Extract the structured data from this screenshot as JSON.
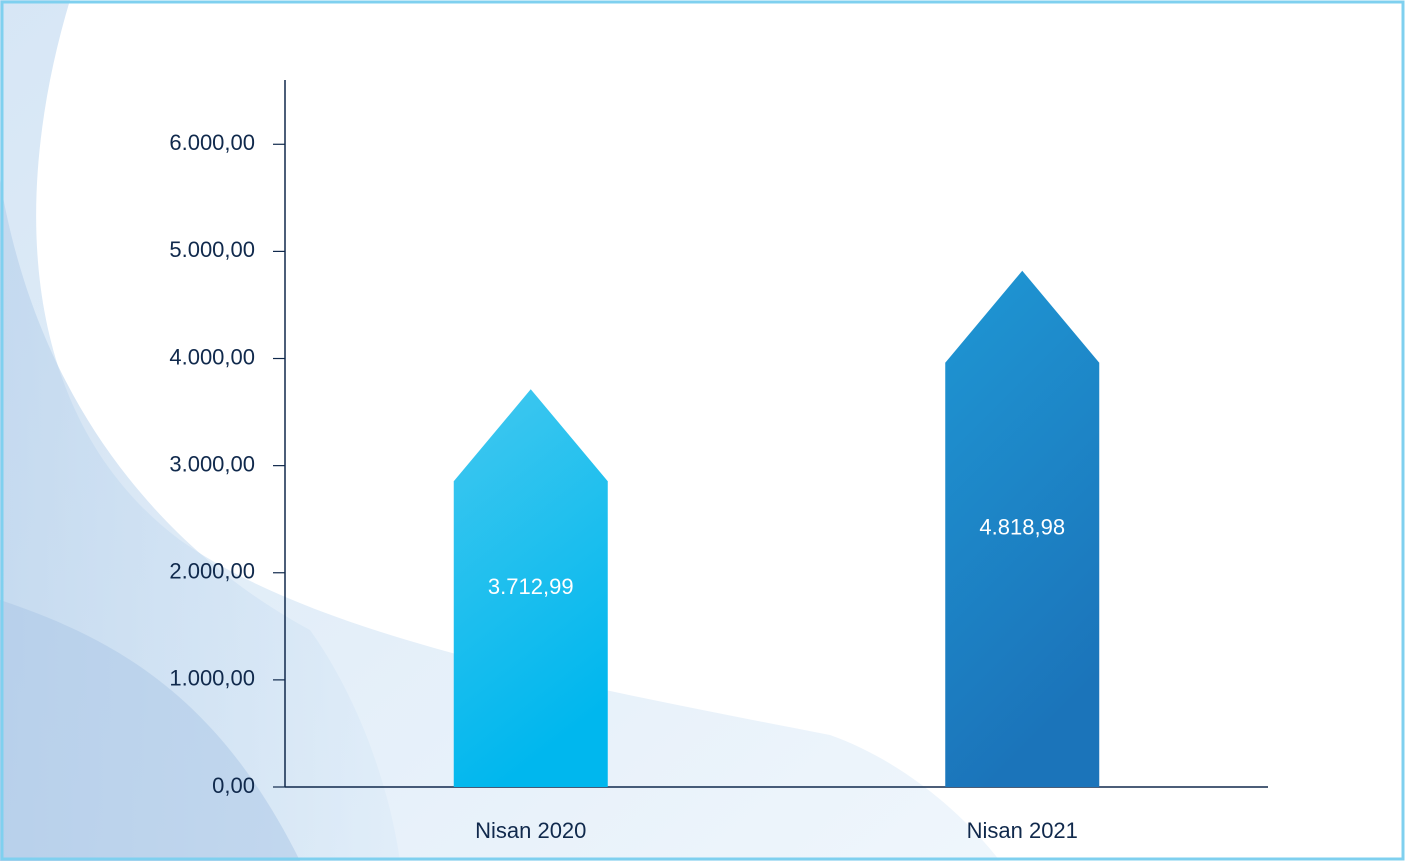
{
  "chart_data": {
    "type": "bar",
    "categories": [
      "Nisan 2020",
      "Nisan 2021"
    ],
    "values": [
      3712.99,
      4818.98
    ],
    "value_labels": [
      "3.712,99",
      "4.818,98"
    ],
    "colors": [
      [
        "#42c8ef",
        "#00b7ee"
      ],
      [
        "#1f97d4",
        "#1b74ba"
      ]
    ],
    "ylim": [
      0,
      6600
    ],
    "yticks": [
      {
        "value": 0,
        "label": "0,00"
      },
      {
        "value": 1000,
        "label": "1.000,00"
      },
      {
        "value": 2000,
        "label": "2.000,00"
      },
      {
        "value": 3000,
        "label": "3.000,00"
      },
      {
        "value": 4000,
        "label": "4.000,00"
      },
      {
        "value": 5000,
        "label": "5.000,00"
      },
      {
        "value": 6000,
        "label": "6.000,00"
      }
    ],
    "grid": false
  }
}
